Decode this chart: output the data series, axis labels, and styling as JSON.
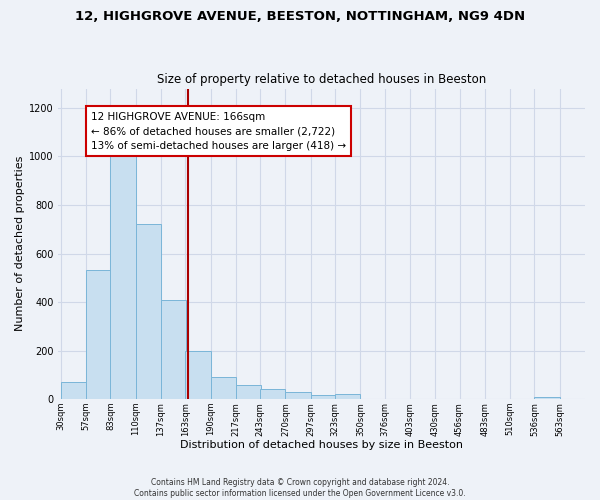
{
  "title": "12, HIGHGROVE AVENUE, BEESTON, NOTTINGHAM, NG9 4DN",
  "subtitle": "Size of property relative to detached houses in Beeston",
  "xlabel": "Distribution of detached houses by size in Beeston",
  "ylabel": "Number of detached properties",
  "bar_color": "#c8dff0",
  "bar_edge_color": "#7ab5d8",
  "background_color": "#eef2f8",
  "plot_bg_color": "#eef2f8",
  "grid_color": "#d0d8e8",
  "bins": [
    30,
    57,
    83,
    110,
    137,
    163,
    190,
    217,
    243,
    270,
    297,
    323,
    350,
    376,
    403,
    430,
    456,
    483,
    510,
    536,
    563
  ],
  "values": [
    70,
    530,
    1000,
    720,
    410,
    200,
    90,
    60,
    40,
    30,
    15,
    20,
    0,
    0,
    0,
    0,
    0,
    0,
    0,
    10
  ],
  "marker_value": 166,
  "marker_color": "#aa0000",
  "annotation_lines": [
    "12 HIGHGROVE AVENUE: 166sqm",
    "← 86% of detached houses are smaller (2,722)",
    "13% of semi-detached houses are larger (418) →"
  ],
  "annotation_box_color": "white",
  "annotation_box_edge": "#cc0000",
  "tick_labels": [
    "30sqm",
    "57sqm",
    "83sqm",
    "110sqm",
    "137sqm",
    "163sqm",
    "190sqm",
    "217sqm",
    "243sqm",
    "270sqm",
    "297sqm",
    "323sqm",
    "350sqm",
    "376sqm",
    "403sqm",
    "430sqm",
    "456sqm",
    "483sqm",
    "510sqm",
    "536sqm",
    "563sqm"
  ],
  "ylim": [
    0,
    1280
  ],
  "yticks": [
    0,
    200,
    400,
    600,
    800,
    1000,
    1200
  ],
  "footer_line1": "Contains HM Land Registry data © Crown copyright and database right 2024.",
  "footer_line2": "Contains public sector information licensed under the Open Government Licence v3.0."
}
